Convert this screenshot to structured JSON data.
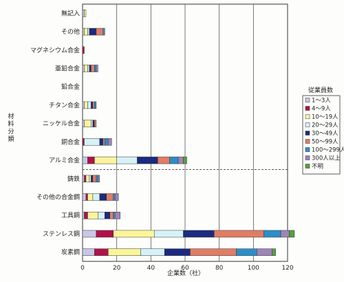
{
  "chart_data": {
    "type": "bar",
    "orientation": "horizontal",
    "stacked": true,
    "categories": [
      "無記入",
      "その他",
      "マグネシウム合金",
      "亜鉛合金",
      "鉛合金",
      "チタン合金",
      "ニッケル合金",
      "銅合金",
      "アルミ合金",
      "鋳鉄",
      "その他の合金鋼",
      "工具鋼",
      "ステンレス鋼",
      "炭素鋼"
    ],
    "series": [
      {
        "name": "1～3人",
        "color": "#c9c6e6",
        "values": [
          1,
          1,
          0,
          1,
          0,
          1,
          1,
          0,
          3,
          1,
          2,
          1,
          8,
          7
        ]
      },
      {
        "name": "4～9人",
        "color": "#b0124a",
        "values": [
          0,
          0,
          1,
          0,
          0,
          0,
          0,
          1,
          4,
          1,
          1,
          2,
          10,
          8
        ]
      },
      {
        "name": "10～19人",
        "color": "#fbf59a",
        "values": [
          1,
          2,
          0,
          2,
          0,
          2,
          4,
          0,
          13,
          2,
          3,
          6,
          24,
          19
        ]
      },
      {
        "name": "20～29人",
        "color": "#d6f2f8",
        "values": [
          0,
          1,
          0,
          1,
          0,
          2,
          1,
          9,
          12,
          1,
          4,
          4,
          17,
          14
        ]
      },
      {
        "name": "30～49人",
        "color": "#1c2a80",
        "values": [
          0,
          4,
          0,
          1,
          0,
          1,
          1,
          2,
          12,
          1,
          4,
          3,
          18,
          15
        ]
      },
      {
        "name": "50～99人",
        "color": "#e07d64",
        "values": [
          0,
          4,
          0,
          2,
          0,
          1,
          1,
          1,
          7,
          2,
          4,
          2,
          29,
          27
        ]
      },
      {
        "name": "100～299人",
        "color": "#2c8ec7",
        "values": [
          0,
          1,
          0,
          1,
          0,
          1,
          0,
          2,
          5,
          1,
          1,
          1,
          10,
          12
        ]
      },
      {
        "name": "300人以上",
        "color": "#9f84b8",
        "values": [
          0,
          0,
          0,
          1,
          0,
          0,
          0,
          2,
          3,
          1,
          2,
          3,
          5,
          9
        ]
      },
      {
        "name": "不明",
        "color": "#57a03c",
        "values": [
          0,
          0,
          0,
          0,
          0,
          0,
          0,
          0,
          2,
          0,
          0,
          0,
          3,
          2
        ]
      }
    ],
    "xlim": [
      0,
      120
    ],
    "xticks": [
      "0",
      "20",
      "40",
      "60",
      "80",
      "100",
      "120"
    ],
    "xlabel": "企業数（社）",
    "ylabel": "材料分類",
    "legend_title": "従業員数",
    "legend_position": "right",
    "grid": "vertical",
    "separator_after_category": "アルミ合金"
  }
}
